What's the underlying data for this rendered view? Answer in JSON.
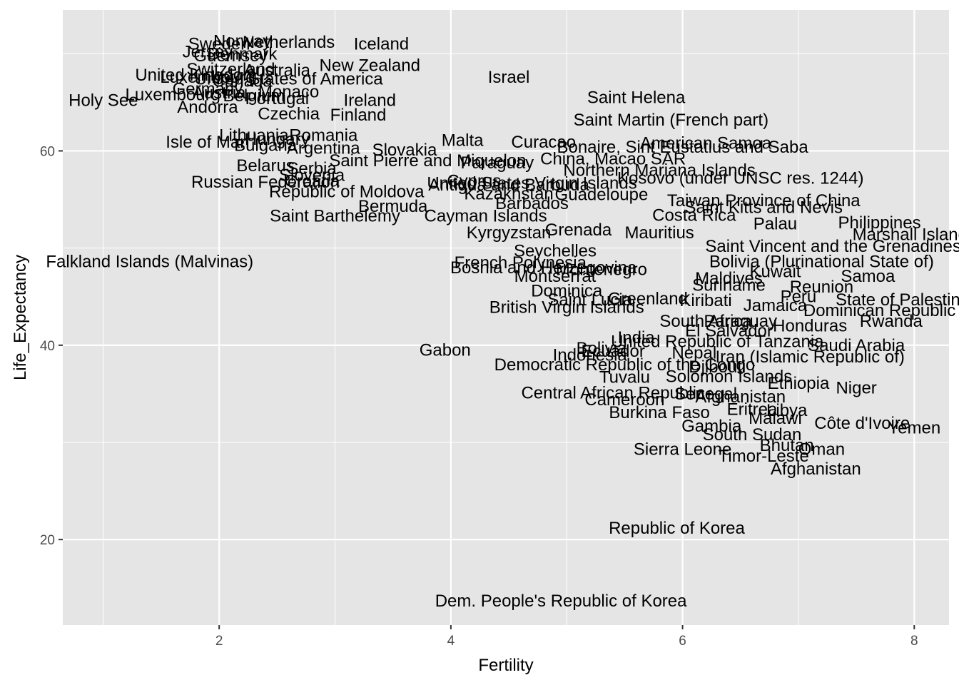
{
  "chart_data": {
    "type": "scatter",
    "mark": "text",
    "xlabel": "Fertility",
    "ylabel": "Life_Expectancy",
    "xlim": [
      0.65,
      8.3
    ],
    "ylim": [
      11.2,
      74.5
    ],
    "xticks": [
      2,
      4,
      6,
      8
    ],
    "yticks": [
      20,
      40,
      60
    ],
    "grid": true,
    "colors": {
      "panel": "#e5e5e5",
      "grid": "#ffffff",
      "text": "#000000",
      "tick_text": "#4d4d4d",
      "tick": "#333333"
    },
    "points": [
      {
        "label": "Norway",
        "x": 2.2,
        "y": 71.3
      },
      {
        "label": "Netherlands",
        "x": 2.6,
        "y": 71.2
      },
      {
        "label": "Iceland",
        "x": 3.4,
        "y": 71.0
      },
      {
        "label": "Sweden",
        "x": 2.0,
        "y": 71.0
      },
      {
        "label": "Denmark",
        "x": 2.2,
        "y": 70.0
      },
      {
        "label": "Jersey",
        "x": 1.9,
        "y": 70.2
      },
      {
        "label": "Guernsey",
        "x": 2.1,
        "y": 69.8
      },
      {
        "label": "New Zealand",
        "x": 3.3,
        "y": 68.8
      },
      {
        "label": "Switzerland",
        "x": 2.1,
        "y": 68.4
      },
      {
        "label": "Australia",
        "x": 2.5,
        "y": 68.3
      },
      {
        "label": "United Kingdom",
        "x": 1.8,
        "y": 67.8
      },
      {
        "label": "Luxembourg",
        "x": 1.9,
        "y": 67.6
      },
      {
        "label": "United States of America",
        "x": 2.6,
        "y": 67.4
      },
      {
        "label": "Canada",
        "x": 2.2,
        "y": 67.2
      },
      {
        "label": "Israel",
        "x": 4.5,
        "y": 67.6
      },
      {
        "label": "Holy See",
        "x": 1.0,
        "y": 65.2
      },
      {
        "label": "Luxembourg",
        "x": 1.6,
        "y": 65.8
      },
      {
        "label": "Germany",
        "x": 1.9,
        "y": 66.4
      },
      {
        "label": "Austria",
        "x": 2.0,
        "y": 66.0
      },
      {
        "label": "Monaco",
        "x": 2.6,
        "y": 66.1
      },
      {
        "label": "Belgium",
        "x": 2.3,
        "y": 65.7
      },
      {
        "label": "Portugal",
        "x": 2.5,
        "y": 65.4
      },
      {
        "label": "Ireland",
        "x": 3.3,
        "y": 65.2
      },
      {
        "label": "Andorra",
        "x": 1.9,
        "y": 64.5
      },
      {
        "label": "Czechia",
        "x": 2.6,
        "y": 63.8
      },
      {
        "label": "Finland",
        "x": 3.2,
        "y": 63.7
      },
      {
        "label": "Saint Helena",
        "x": 5.6,
        "y": 65.5
      },
      {
        "label": "Saint Martin (French part)",
        "x": 5.9,
        "y": 63.2
      },
      {
        "label": "Lithuania",
        "x": 2.3,
        "y": 61.6
      },
      {
        "label": "Romania",
        "x": 2.9,
        "y": 61.6
      },
      {
        "label": "Hungary",
        "x": 2.5,
        "y": 61.2
      },
      {
        "label": "Isle of Man",
        "x": 1.9,
        "y": 60.9
      },
      {
        "label": "Bulgaria",
        "x": 2.4,
        "y": 60.6
      },
      {
        "label": "Argentina",
        "x": 2.9,
        "y": 60.3
      },
      {
        "label": "Slovakia",
        "x": 3.6,
        "y": 60.1
      },
      {
        "label": "Malta",
        "x": 4.1,
        "y": 61.1
      },
      {
        "label": "Curacao",
        "x": 4.8,
        "y": 60.9
      },
      {
        "label": "Bonaire, Sint Eustatius and Saba",
        "x": 6.0,
        "y": 60.4
      },
      {
        "label": "American Samoa",
        "x": 6.2,
        "y": 60.8
      },
      {
        "label": "Belarus",
        "x": 2.4,
        "y": 58.5
      },
      {
        "label": "Serbia",
        "x": 2.8,
        "y": 58.2
      },
      {
        "label": "Saint Pierre and Miquelon",
        "x": 3.8,
        "y": 59.0
      },
      {
        "label": "China, Macao SAR",
        "x": 5.4,
        "y": 59.2
      },
      {
        "label": "Northern Mariana Islands",
        "x": 5.8,
        "y": 58.0
      },
      {
        "label": "Paraguay",
        "x": 4.4,
        "y": 58.8
      },
      {
        "label": "Kosovo (under UNSC res. 1244)",
        "x": 6.5,
        "y": 57.2
      },
      {
        "label": "Russian Federation",
        "x": 2.4,
        "y": 56.8
      },
      {
        "label": "Slovenia",
        "x": 2.8,
        "y": 57.5
      },
      {
        "label": "Croatia",
        "x": 2.8,
        "y": 56.9
      },
      {
        "label": "Cyprus",
        "x": 4.2,
        "y": 56.9
      },
      {
        "label": "United States Virgin Islands",
        "x": 4.7,
        "y": 56.7
      },
      {
        "label": "Antigua and Barbuda",
        "x": 4.5,
        "y": 56.5
      },
      {
        "label": "Republic of Moldova",
        "x": 3.1,
        "y": 55.8
      },
      {
        "label": "Kazakhstan",
        "x": 4.5,
        "y": 55.6
      },
      {
        "label": "Guadeloupe",
        "x": 5.3,
        "y": 55.5
      },
      {
        "label": "Taiwan Province of China",
        "x": 6.7,
        "y": 54.9
      },
      {
        "label": "Barbados",
        "x": 4.7,
        "y": 54.6
      },
      {
        "label": "Saint Kitts and Nevis",
        "x": 6.7,
        "y": 54.2
      },
      {
        "label": "Bermuda",
        "x": 3.5,
        "y": 54.3
      },
      {
        "label": "Saint Barthelemy",
        "x": 3.0,
        "y": 53.3
      },
      {
        "label": "Cayman Islands",
        "x": 4.3,
        "y": 53.3
      },
      {
        "label": "Costa Rica",
        "x": 6.1,
        "y": 53.4
      },
      {
        "label": "Philippines",
        "x": 7.7,
        "y": 52.6
      },
      {
        "label": "Kyrgyzstan",
        "x": 4.5,
        "y": 51.6
      },
      {
        "label": "Grenada",
        "x": 5.1,
        "y": 51.9
      },
      {
        "label": "Mauritius",
        "x": 5.8,
        "y": 51.6
      },
      {
        "label": "Palau",
        "x": 6.8,
        "y": 52.5
      },
      {
        "label": "Marshall Islands",
        "x": 8.0,
        "y": 51.4
      },
      {
        "label": "Seychelles",
        "x": 4.9,
        "y": 49.7
      },
      {
        "label": "Saint Vincent and the Grenadines",
        "x": 7.3,
        "y": 50.2
      },
      {
        "label": "Bolivia (Plurinational State of)",
        "x": 7.2,
        "y": 48.6
      },
      {
        "label": "Falkland Islands (Malvinas)",
        "x": 1.4,
        "y": 48.6
      },
      {
        "label": "French Polynesia",
        "x": 4.6,
        "y": 48.5
      },
      {
        "label": "Bosnia and Herzegovina",
        "x": 4.8,
        "y": 48.0
      },
      {
        "label": "Montenegro",
        "x": 5.3,
        "y": 47.8
      },
      {
        "label": "Montserrat",
        "x": 4.9,
        "y": 47.1
      },
      {
        "label": "Kuwait",
        "x": 6.8,
        "y": 47.6
      },
      {
        "label": "Samoa",
        "x": 7.6,
        "y": 47.1
      },
      {
        "label": "Maldives",
        "x": 6.4,
        "y": 46.9
      },
      {
        "label": "Suriname",
        "x": 6.4,
        "y": 46.2
      },
      {
        "label": "Reunion",
        "x": 7.2,
        "y": 46.0
      },
      {
        "label": "Dominica",
        "x": 5.0,
        "y": 45.6
      },
      {
        "label": "Saint Lucia",
        "x": 5.2,
        "y": 44.7
      },
      {
        "label": "Greenland",
        "x": 5.7,
        "y": 44.8
      },
      {
        "label": "Kiribati",
        "x": 6.2,
        "y": 44.6
      },
      {
        "label": "Peru",
        "x": 7.0,
        "y": 45.0
      },
      {
        "label": "State of Palestine",
        "x": 7.9,
        "y": 44.7
      },
      {
        "label": "British Virgin Islands",
        "x": 5.0,
        "y": 43.9
      },
      {
        "label": "Jamaica",
        "x": 6.8,
        "y": 44.1
      },
      {
        "label": "Dominican Republic",
        "x": 7.7,
        "y": 43.6
      },
      {
        "label": "South Africa",
        "x": 6.2,
        "y": 42.5
      },
      {
        "label": "Paraguay",
        "x": 6.5,
        "y": 42.5
      },
      {
        "label": "Rwanda",
        "x": 7.8,
        "y": 42.5
      },
      {
        "label": "Honduras",
        "x": 7.1,
        "y": 42.0
      },
      {
        "label": "El Salvador",
        "x": 6.4,
        "y": 41.5
      },
      {
        "label": "India",
        "x": 5.6,
        "y": 40.8
      },
      {
        "label": "United Republic of Tanzania",
        "x": 6.3,
        "y": 40.4
      },
      {
        "label": "Saudi Arabia",
        "x": 7.5,
        "y": 40.0
      },
      {
        "label": "Bolivia",
        "x": 5.3,
        "y": 39.7
      },
      {
        "label": "Indonesia",
        "x": 5.2,
        "y": 39.0
      },
      {
        "label": "Ecuador",
        "x": 5.4,
        "y": 39.4
      },
      {
        "label": "Nepal",
        "x": 6.1,
        "y": 39.2
      },
      {
        "label": "Gabon",
        "x": 3.95,
        "y": 39.5
      },
      {
        "label": "Iran (Islamic Republic of)",
        "x": 7.1,
        "y": 38.8
      },
      {
        "label": "Democratic Republic of the Congo",
        "x": 5.5,
        "y": 38.0
      },
      {
        "label": "Djibouti",
        "x": 6.3,
        "y": 37.8
      },
      {
        "label": "Tuvalu",
        "x": 5.5,
        "y": 36.7
      },
      {
        "label": "Solomon Islands",
        "x": 6.4,
        "y": 36.8
      },
      {
        "label": "Ethiopia",
        "x": 7.0,
        "y": 36.1
      },
      {
        "label": "Niger",
        "x": 7.5,
        "y": 35.6
      },
      {
        "label": "Central African Republic",
        "x": 5.4,
        "y": 35.1
      },
      {
        "label": "Cameroon",
        "x": 5.5,
        "y": 34.4
      },
      {
        "label": "Senegal",
        "x": 6.2,
        "y": 35.0
      },
      {
        "label": "Afghanistan",
        "x": 6.5,
        "y": 34.7
      },
      {
        "label": "Burkina Faso",
        "x": 5.8,
        "y": 33.1
      },
      {
        "label": "Eritrea",
        "x": 6.6,
        "y": 33.4
      },
      {
        "label": "Libya",
        "x": 6.9,
        "y": 33.3
      },
      {
        "label": "Malawi",
        "x": 6.8,
        "y": 32.5
      },
      {
        "label": "Côte d'Ivoire",
        "x": 7.55,
        "y": 32.0
      },
      {
        "label": "Yemen",
        "x": 8.0,
        "y": 31.5
      },
      {
        "label": "Gambia",
        "x": 6.25,
        "y": 31.7
      },
      {
        "label": "South Sudan",
        "x": 6.6,
        "y": 30.8
      },
      {
        "label": "Bhutan",
        "x": 6.9,
        "y": 29.7
      },
      {
        "label": "Oman",
        "x": 7.2,
        "y": 29.3
      },
      {
        "label": "Sierra Leone",
        "x": 6.0,
        "y": 29.3
      },
      {
        "label": "Timor-Leste",
        "x": 6.7,
        "y": 28.6
      },
      {
        "label": "Afghanistan",
        "x": 7.15,
        "y": 27.3
      },
      {
        "label": "Republic of Korea",
        "x": 5.95,
        "y": 21.2
      },
      {
        "label": "Dem. People's Republic of Korea",
        "x": 4.95,
        "y": 13.7
      }
    ]
  }
}
